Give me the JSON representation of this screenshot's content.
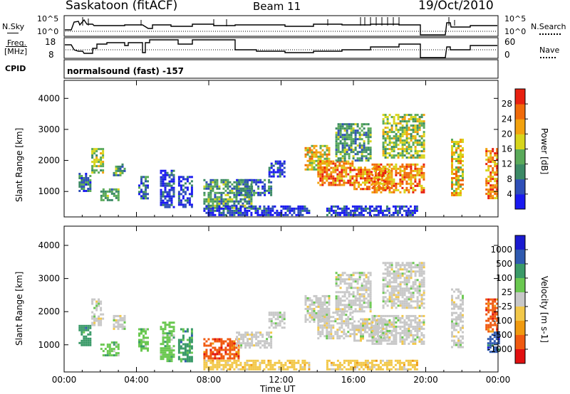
{
  "header": {
    "site": "Saskatoon (fitACF)",
    "beam": "Beam 11",
    "date": "19/Oct/2010"
  },
  "top_panels": {
    "nsky_label": "N.Sky",
    "nsky_ticks": [
      "10^5",
      "10^0"
    ],
    "nsearch_label": "N.Search",
    "nsearch_ticks": [
      "10^5",
      "10^0"
    ],
    "freq_label_1": "Freq.",
    "freq_label_2": "[MHz]",
    "freq_ticks": [
      "18",
      "8"
    ],
    "nave_label": "Nave",
    "nave_ticks": [
      "60",
      "0"
    ],
    "cpid_label": "CPID",
    "cpid_value": "normalsound (fast) -157"
  },
  "colors": {
    "power_scale": [
      "#1a1af0",
      "#2f4fb8",
      "#3c8a66",
      "#5aaa5a",
      "#d7d51c",
      "#f2a20f",
      "#f06a0a",
      "#e82010"
    ],
    "velocity_scale": [
      "#e11010",
      "#f05a10",
      "#f09a10",
      "#f2c84a",
      "#c8c8c8",
      "#6ac850",
      "#3a9a68",
      "#2f5ab0",
      "#1a1ad0"
    ]
  },
  "chart_data": [
    {
      "type": "heatmap",
      "title": "",
      "panel": "power",
      "xlabel": "",
      "ylabel": "Slant Range [km]",
      "x_ticks": [
        "00:00",
        "04:00",
        "08:00",
        "12:00",
        "16:00",
        "20:00",
        "00:00"
      ],
      "xlim_hours": [
        0,
        24
      ],
      "y_ticks": [
        1000,
        2000,
        3000,
        4000
      ],
      "ylim": [
        180,
        4580
      ],
      "colorbar_label": "Power [dB]",
      "colorbar_ticks": [
        4,
        8,
        12,
        16,
        20,
        24,
        28
      ],
      "colorbar_range": [
        0,
        32
      ],
      "regions": [
        {
          "t0": 0.8,
          "t1": 1.4,
          "r0": 1000,
          "r1": 1600,
          "v": 12
        },
        {
          "t0": 1.5,
          "t1": 2.2,
          "r0": 1600,
          "r1": 2400,
          "v": 20
        },
        {
          "t0": 2.0,
          "t1": 3.0,
          "r0": 700,
          "r1": 1100,
          "v": 16
        },
        {
          "t0": 2.7,
          "t1": 3.4,
          "r0": 1500,
          "r1": 1900,
          "v": 14
        },
        {
          "t0": 4.1,
          "t1": 4.6,
          "r0": 800,
          "r1": 1500,
          "v": 10
        },
        {
          "t0": 5.3,
          "t1": 6.1,
          "r0": 500,
          "r1": 1700,
          "v": 9
        },
        {
          "t0": 6.3,
          "t1": 7.1,
          "r0": 500,
          "r1": 1500,
          "v": 8
        },
        {
          "t0": 7.7,
          "t1": 10.4,
          "r0": 500,
          "r1": 1400,
          "v": 14
        },
        {
          "t0": 9.5,
          "t1": 11.4,
          "r0": 900,
          "r1": 1400,
          "v": 12
        },
        {
          "t0": 11.3,
          "t1": 12.2,
          "r0": 1500,
          "r1": 2000,
          "v": 6
        },
        {
          "t0": 7.7,
          "t1": 13.5,
          "r0": 250,
          "r1": 550,
          "v": 8
        },
        {
          "t0": 13.3,
          "t1": 14.7,
          "r0": 1700,
          "r1": 2500,
          "v": 22
        },
        {
          "t0": 14.0,
          "t1": 16.0,
          "r0": 1200,
          "r1": 2000,
          "v": 26
        },
        {
          "t0": 15.0,
          "t1": 17.0,
          "r0": 2000,
          "r1": 3200,
          "v": 16
        },
        {
          "t0": 16.0,
          "t1": 18.0,
          "r0": 1100,
          "r1": 1800,
          "v": 26
        },
        {
          "t0": 17.0,
          "t1": 19.9,
          "r0": 1000,
          "r1": 1900,
          "v": 28
        },
        {
          "t0": 17.6,
          "t1": 19.9,
          "r0": 2100,
          "r1": 3500,
          "v": 18
        },
        {
          "t0": 14.5,
          "t1": 19.5,
          "r0": 250,
          "r1": 550,
          "v": 6
        },
        {
          "t0": 21.4,
          "t1": 22.0,
          "r0": 900,
          "r1": 2700,
          "v": 24
        },
        {
          "t0": 23.3,
          "t1": 24.0,
          "r0": 800,
          "r1": 2400,
          "v": 28
        }
      ]
    },
    {
      "type": "heatmap",
      "title": "",
      "panel": "velocity",
      "xlabel": "Time UT",
      "ylabel": "Slant Range [km]",
      "x_ticks": [
        "00:00",
        "04:00",
        "08:00",
        "12:00",
        "16:00",
        "20:00",
        "00:00"
      ],
      "xlim_hours": [
        0,
        24
      ],
      "y_ticks": [
        1000,
        2000,
        3000,
        4000
      ],
      "ylim": [
        180,
        4580
      ],
      "colorbar_label": "Velocity [m s-1]",
      "colorbar_ticks": [
        "1000",
        "500",
        "100",
        "25",
        "-25",
        "-100",
        "-500",
        "-1000"
      ],
      "regions": [
        {
          "t0": 0.8,
          "t1": 1.4,
          "r0": 1000,
          "r1": 1600,
          "c": 6
        },
        {
          "t0": 1.5,
          "t1": 2.2,
          "r0": 1600,
          "r1": 2400,
          "c": 4
        },
        {
          "t0": 2.0,
          "t1": 3.0,
          "r0": 700,
          "r1": 1100,
          "c": 5
        },
        {
          "t0": 2.7,
          "t1": 3.4,
          "r0": 1500,
          "r1": 1900,
          "c": 4
        },
        {
          "t0": 4.1,
          "t1": 4.6,
          "r0": 800,
          "r1": 1500,
          "c": 5
        },
        {
          "t0": 5.3,
          "t1": 6.1,
          "r0": 500,
          "r1": 1700,
          "c": 5
        },
        {
          "t0": 6.3,
          "t1": 7.1,
          "r0": 500,
          "r1": 1500,
          "c": 6
        },
        {
          "t0": 7.7,
          "t1": 9.6,
          "r0": 600,
          "r1": 1200,
          "c": 1
        },
        {
          "t0": 9.5,
          "t1": 11.4,
          "r0": 900,
          "r1": 1400,
          "c": 4
        },
        {
          "t0": 11.3,
          "t1": 12.2,
          "r0": 1500,
          "r1": 2000,
          "c": 4
        },
        {
          "t0": 7.7,
          "t1": 13.5,
          "r0": 250,
          "r1": 550,
          "c": 3
        },
        {
          "t0": 13.3,
          "t1": 14.7,
          "r0": 1700,
          "r1": 2500,
          "c": 4
        },
        {
          "t0": 14.0,
          "t1": 16.0,
          "r0": 1200,
          "r1": 2000,
          "c": 4
        },
        {
          "t0": 15.0,
          "t1": 17.0,
          "r0": 2000,
          "r1": 3200,
          "c": 4
        },
        {
          "t0": 16.0,
          "t1": 18.0,
          "r0": 1100,
          "r1": 1800,
          "c": 4
        },
        {
          "t0": 17.0,
          "t1": 19.9,
          "r0": 1000,
          "r1": 1900,
          "c": 4
        },
        {
          "t0": 17.6,
          "t1": 19.9,
          "r0": 2100,
          "r1": 3500,
          "c": 4
        },
        {
          "t0": 14.5,
          "t1": 19.5,
          "r0": 250,
          "r1": 550,
          "c": 3
        },
        {
          "t0": 21.4,
          "t1": 22.0,
          "r0": 900,
          "r1": 2700,
          "c": 4
        },
        {
          "t0": 23.3,
          "t1": 24.0,
          "r0": 1400,
          "r1": 2400,
          "c": 1
        },
        {
          "t0": 23.4,
          "t1": 24.0,
          "r0": 800,
          "r1": 1400,
          "c": 7
        }
      ]
    }
  ]
}
